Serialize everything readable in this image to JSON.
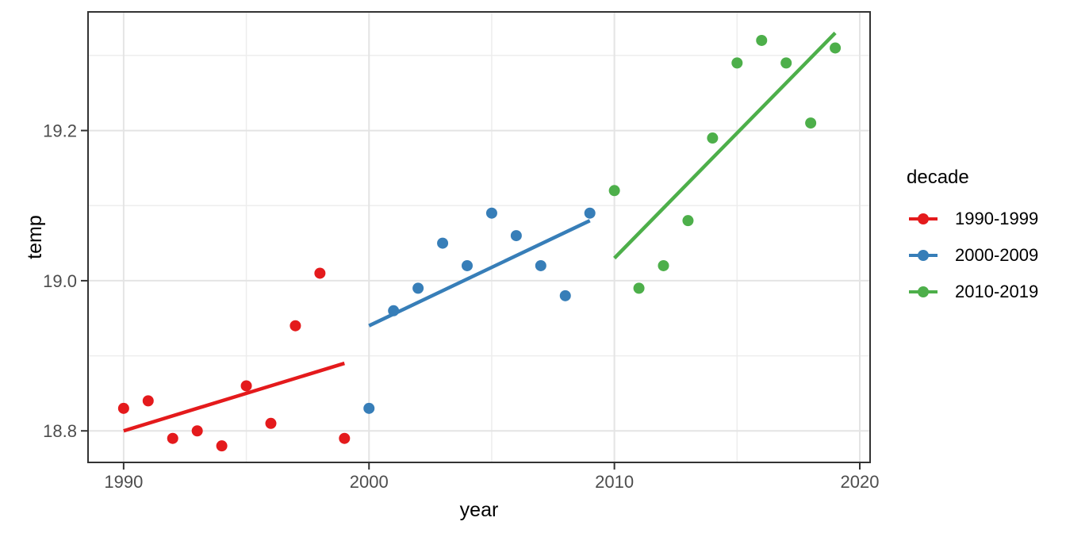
{
  "figure": {
    "background": "#FFFFFF"
  },
  "chart_data": {
    "type": "scatter",
    "title": "",
    "xlabel": "year",
    "ylabel": "temp",
    "grid": "major+minor",
    "legend_position": "right",
    "xlim": [
      1988.55,
      2020.42
    ],
    "ylim": [
      18.758,
      19.358
    ],
    "x_ticks": [
      {
        "v": 1990,
        "label": "1990"
      },
      {
        "v": 2000,
        "label": "2000"
      },
      {
        "v": 2010,
        "label": "2010"
      },
      {
        "v": 2020,
        "label": "2020"
      }
    ],
    "x_minor_ticks": [
      1995,
      2005,
      2015
    ],
    "y_ticks": [
      {
        "v": 18.8,
        "label": "18.8"
      },
      {
        "v": 19.0,
        "label": "19.0"
      },
      {
        "v": 19.2,
        "label": "19.2"
      }
    ],
    "y_minor_ticks": [
      18.9,
      19.1,
      19.3
    ],
    "series": [
      {
        "name": "1990-1999",
        "color": "#E41A1C",
        "points": [
          [
            1990,
            18.83
          ],
          [
            1991,
            18.84
          ],
          [
            1992,
            18.79
          ],
          [
            1993,
            18.8
          ],
          [
            1994,
            18.78
          ],
          [
            1995,
            18.86
          ],
          [
            1996,
            18.81
          ],
          [
            1997,
            18.94
          ],
          [
            1998,
            19.01
          ],
          [
            1999,
            18.79
          ]
        ],
        "trend": [
          [
            1990,
            18.8
          ],
          [
            1999,
            18.89
          ]
        ]
      },
      {
        "name": "2000-2009",
        "color": "#377EB8",
        "points": [
          [
            2000,
            18.83
          ],
          [
            2001,
            18.96
          ],
          [
            2002,
            18.99
          ],
          [
            2003,
            19.05
          ],
          [
            2004,
            19.02
          ],
          [
            2005,
            19.09
          ],
          [
            2006,
            19.06
          ],
          [
            2007,
            19.02
          ],
          [
            2008,
            18.98
          ],
          [
            2009,
            19.09
          ]
        ],
        "trend": [
          [
            2000,
            18.94
          ],
          [
            2009,
            19.08
          ]
        ]
      },
      {
        "name": "2010-2019",
        "color": "#4DAF4A",
        "points": [
          [
            2010,
            19.12
          ],
          [
            2011,
            18.99
          ],
          [
            2012,
            19.02
          ],
          [
            2013,
            19.08
          ],
          [
            2014,
            19.19
          ],
          [
            2015,
            19.29
          ],
          [
            2016,
            19.32
          ],
          [
            2017,
            19.29
          ],
          [
            2018,
            19.21
          ],
          [
            2019,
            19.31
          ]
        ],
        "trend": [
          [
            2010,
            19.03
          ],
          [
            2019,
            19.33
          ]
        ]
      }
    ],
    "colors": {
      "panel_background": "#FFFFFF",
      "panel_border": "#333333",
      "grid_major": "#E4E4E4",
      "grid_minor": "#EDEDED",
      "tick": "#333333",
      "tick_label": "#4D4D4D",
      "axis_title": "#000000",
      "legend_text": "#000000"
    }
  },
  "legend": {
    "title": "decade",
    "items": [
      {
        "label": "1990-1999",
        "color": "#E41A1C"
      },
      {
        "label": "2000-2009",
        "color": "#377EB8"
      },
      {
        "label": "2010-2019",
        "color": "#4DAF4A"
      }
    ]
  }
}
